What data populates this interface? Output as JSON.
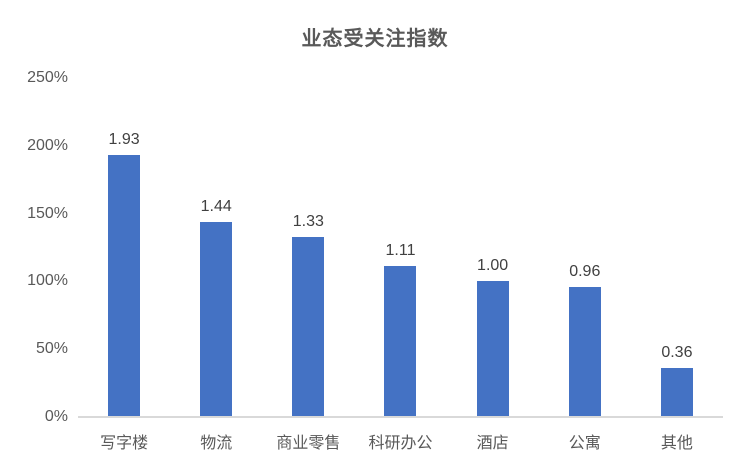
{
  "chart_data": {
    "type": "bar",
    "title": "业态受关注指数",
    "categories": [
      "写字楼",
      "物流",
      "商业零售",
      "科研办公",
      "酒店",
      "公寓",
      "其他"
    ],
    "values": [
      1.93,
      1.44,
      1.33,
      1.11,
      1.0,
      0.96,
      0.36
    ],
    "value_labels": [
      "1.93",
      "1.44",
      "1.33",
      "1.11",
      "1.00",
      "0.96",
      "0.36"
    ],
    "xlabel": "",
    "ylabel": "",
    "ylim": [
      0,
      2.5
    ],
    "y_ticks": [
      {
        "value": 0,
        "label": "0%"
      },
      {
        "value": 0.5,
        "label": "50%"
      },
      {
        "value": 1.0,
        "label": "100%"
      },
      {
        "value": 1.5,
        "label": "150%"
      },
      {
        "value": 2.0,
        "label": "200%"
      },
      {
        "value": 2.5,
        "label": "250%"
      }
    ],
    "grid": false,
    "legend_position": "none",
    "colors": {
      "bar": "#4472C4",
      "axis_line": "#D9D9D9",
      "title_text": "#595959",
      "axis_text": "#595959",
      "data_label_text": "#404040",
      "background": "#FFFFFF"
    }
  }
}
